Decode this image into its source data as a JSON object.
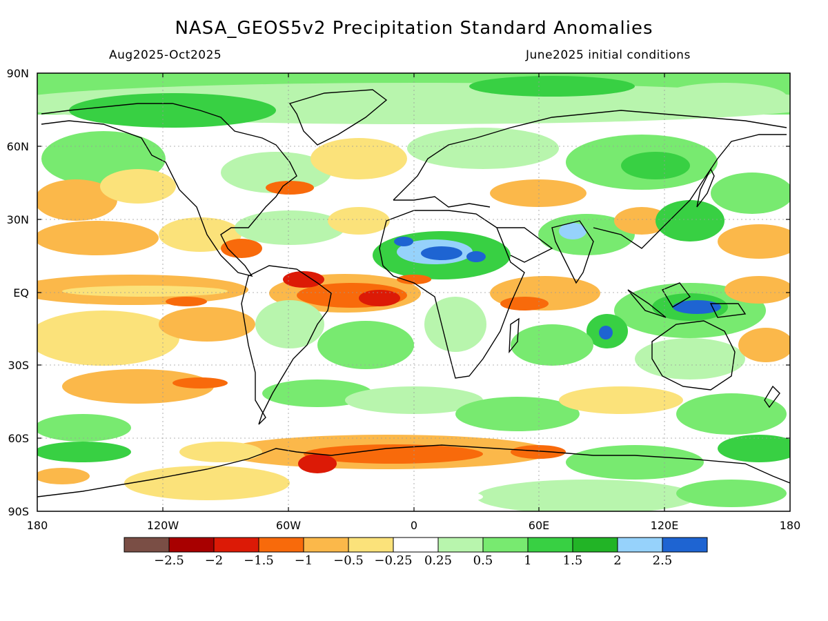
{
  "title": "NASA_GEOS5v2 Precipitation Standard Anomalies",
  "subtitle_left": "Aug2025-Oct2025",
  "subtitle_right": "June2025 initial conditions",
  "lat_labels": [
    "90N",
    "60N",
    "30N",
    "EQ",
    "30S",
    "60S",
    "90S"
  ],
  "lon_labels": [
    "180",
    "120W",
    "60W",
    "0",
    "60E",
    "120E",
    "180"
  ],
  "colorbar": {
    "colors": [
      "#7a4e45",
      "#a80000",
      "#dc1a06",
      "#f86a0b",
      "#fbb84a",
      "#fbe27a",
      "#ffffff",
      "#b8f5ad",
      "#78ea70",
      "#38d043",
      "#22b426",
      "#96d2fb",
      "#1e64d2"
    ],
    "labels": [
      "−2.5",
      "−2",
      "−1.5",
      "−1",
      "−0.5",
      "−0.25",
      "0.25",
      "0.5",
      "1",
      "1.5",
      "2",
      "2.5"
    ]
  }
}
